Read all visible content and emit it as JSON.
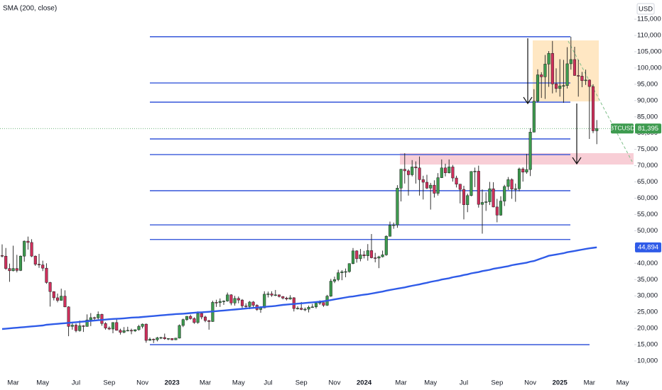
{
  "chart_data": {
    "type": "candlestick",
    "currency": "USD",
    "categories": [
      null,
      null,
      null,
      "Mar",
      null,
      null,
      null,
      null,
      null,
      null,
      null,
      "May",
      null,
      null,
      null,
      null,
      null,
      null,
      null,
      null,
      "Jul",
      null,
      null,
      null,
      null,
      null,
      null,
      null,
      null,
      "Sep",
      null,
      null,
      null,
      null,
      null,
      null,
      null,
      null,
      "Nov",
      null,
      null,
      null,
      null,
      null,
      null,
      null,
      "2023",
      null,
      null,
      null,
      null,
      null,
      null,
      null,
      null,
      "Mar",
      null,
      null,
      null,
      null,
      null,
      null,
      null,
      null,
      "May",
      null,
      null,
      null,
      null,
      null,
      null,
      null,
      "Jul",
      null,
      null,
      null,
      null,
      null,
      null,
      null,
      null,
      "Sep",
      null,
      null,
      null,
      null,
      null,
      null,
      null,
      null,
      "Nov",
      null,
      null,
      null,
      null,
      null,
      null,
      null,
      "2024",
      null,
      null,
      null,
      null,
      null,
      null,
      null,
      null,
      null,
      "Mar",
      null,
      null,
      null,
      null,
      null,
      null,
      null,
      "May",
      null,
      null,
      null,
      null,
      null,
      null,
      null,
      null,
      "Jul",
      null,
      null,
      null,
      null,
      null,
      null,
      null,
      null,
      "Sep",
      null,
      null,
      null,
      null,
      null,
      null,
      null,
      null,
      "Nov",
      null,
      null,
      null,
      null,
      null,
      null,
      null,
      "2025",
      null,
      null,
      null,
      null,
      null,
      null,
      null,
      "Mar",
      null,
      null,
      null,
      null,
      null,
      null,
      null,
      null,
      "May"
    ],
    "series": [
      {
        "name": "BTCUSD",
        "up_color": "#3d9b4f",
        "down_color": "#cf2f5c",
        "wick_color": "#1e1e1e",
        "price_tag": "81,395",
        "open": [
          42400,
          42200,
          38400,
          37700,
          38400,
          37800,
          42200,
          46800,
          46400,
          42200,
          39700,
          39500,
          38500,
          34100,
          31300,
          29400,
          28600,
          29900,
          26600,
          20600,
          21000,
          19300,
          20800,
          20600,
          22600,
          23300,
          23200,
          24300,
          21500,
          20100,
          19800,
          21800,
          19400,
          18800,
          19300,
          19400,
          19200,
          19600,
          20600,
          21300,
          16300,
          16700,
          16500,
          17100,
          17200,
          16800,
          16900,
          16500,
          17000,
          20900,
          22700,
          23700,
          23000,
          21800,
          24600,
          23500,
          22400,
          22100,
          28000,
          27900,
          28300,
          28400,
          30300,
          27800,
          29200,
          28700,
          26900,
          26700,
          28100,
          27100,
          25800,
          26300,
          30500,
          30600,
          30200,
          30300,
          29800,
          29300,
          29000,
          29400,
          26100,
          26200,
          25800,
          25900,
          26500,
          26600,
          27900,
          27950,
          27100,
          29900,
          34500,
          35000,
          37100,
          37400,
          37450,
          39900,
          43800,
          41400,
          42600,
          42300,
          43900,
          41700,
          41600,
          42000,
          42600,
          48300,
          51700,
          51800,
          63100,
          68900,
          68400,
          67200,
          69600,
          69300,
          65700,
          64900,
          63100,
          64000,
          61500,
          66300,
          69300,
          67800,
          69600,
          66200,
          64300,
          62700,
          58000,
          60800,
          68200,
          68300,
          58100,
          58700,
          58900,
          62900,
          57300,
          54800,
          59100,
          63600,
          65700,
          62800,
          62900,
          69000,
          68000,
          68800,
          80300,
          89800,
          97900,
          97300,
          101200,
          104500,
          95100,
          93700,
          94500,
          94600,
          101300,
          102600,
          97700,
          97500,
          96100,
          96300,
          94300,
          80700,
          null,
          null,
          null,
          null,
          null,
          null,
          null
        ],
        "high": [
          45800,
          44700,
          39900,
          45400,
          42600,
          42400,
          47000,
          48200,
          47400,
          42400,
          42900,
          40800,
          40000,
          34300,
          31400,
          30700,
          32200,
          31700,
          26800,
          21800,
          21500,
          22400,
          21000,
          24300,
          24700,
          23600,
          25200,
          24500,
          21900,
          20600,
          21900,
          22800,
          19900,
          20400,
          20500,
          19900,
          19700,
          21100,
          21500,
          21500,
          17200,
          16900,
          17400,
          17400,
          18400,
          17000,
          16950,
          17100,
          21200,
          23000,
          23800,
          24200,
          23400,
          25200,
          25000,
          23900,
          22600,
          28500,
          28800,
          29200,
          28600,
          31000,
          30500,
          30000,
          29800,
          29000,
          27700,
          28400,
          28400,
          27400,
          26800,
          31400,
          31300,
          31400,
          31800,
          30400,
          29900,
          29700,
          30200,
          29600,
          26800,
          28100,
          26400,
          27000,
          27500,
          28000,
          28600,
          28000,
          30300,
          35200,
          35900,
          38000,
          37900,
          38400,
          40000,
          44700,
          44000,
          44400,
          43800,
          45900,
          49000,
          43200,
          42300,
          43900,
          48600,
          52800,
          52500,
          64000,
          69000,
          73800,
          68900,
          71700,
          71300,
          72800,
          66900,
          67200,
          64700,
          65500,
          67700,
          71900,
          70600,
          71900,
          70200,
          66900,
          64400,
          63800,
          61400,
          68300,
          69400,
          70000,
          62700,
          61800,
          65000,
          64900,
          59800,
          60600,
          64100,
          66500,
          66100,
          64500,
          69400,
          69500,
          73600,
          81500,
          93500,
          99600,
          98700,
          104000,
          105200,
          108300,
          99900,
          102700,
          102500,
          106400,
          109600,
          106500,
          102500,
          98800,
          99500,
          96500,
          95000,
          84000,
          null,
          null,
          null,
          null,
          null,
          null,
          null
        ],
        "low": [
          41800,
          38000,
          34300,
          37500,
          37200,
          37600,
          40500,
          44200,
          41900,
          39200,
          38600,
          37600,
          33700,
          26700,
          28600,
          28000,
          28500,
          26500,
          17600,
          19600,
          18800,
          19000,
          18900,
          20500,
          20700,
          22400,
          22700,
          20800,
          19600,
          19500,
          18500,
          19300,
          18100,
          18500,
          19100,
          18200,
          18900,
          19300,
          20000,
          15600,
          16200,
          15500,
          16000,
          16700,
          16500,
          16400,
          16300,
          16400,
          16900,
          20400,
          22300,
          22700,
          21400,
          21400,
          22800,
          21900,
          19600,
          22000,
          26600,
          26600,
          27200,
          28200,
          27100,
          27000,
          27700,
          25800,
          26300,
          25900,
          26500,
          25400,
          24800,
          26200,
          29500,
          29700,
          29900,
          29500,
          28900,
          28600,
          28800,
          25200,
          25800,
          25600,
          25300,
          24900,
          26300,
          26100,
          27200,
          26600,
          26900,
          29700,
          33900,
          34500,
          34800,
          35700,
          37100,
          39700,
          40200,
          40600,
          41500,
          40800,
          41500,
          40300,
          38500,
          41800,
          42300,
          48200,
          50600,
          50900,
          59000,
          64500,
          60800,
          66700,
          64500,
          60800,
          59600,
          62800,
          56500,
          60200,
          60800,
          66200,
          66700,
          67600,
          65100,
          63300,
          58400,
          53500,
          55700,
          60600,
          63400,
          57100,
          49100,
          56100,
          57900,
          57200,
          52600,
          54600,
          57600,
          62500,
          59800,
          58900,
          62100,
          65100,
          67500,
          66800,
          80200,
          89400,
          90800,
          90500,
          94200,
          92200,
          92500,
          91200,
          89300,
          93700,
          99500,
          97600,
          91200,
          94100,
          94800,
          78200,
          80000,
          76600,
          null,
          null,
          null,
          null,
          null,
          null,
          null
        ],
        "close": [
          42200,
          38400,
          37700,
          38400,
          37800,
          42200,
          46800,
          46400,
          42200,
          39700,
          39500,
          38500,
          34100,
          31300,
          29400,
          28600,
          29900,
          26600,
          20600,
          21000,
          19300,
          20800,
          20600,
          22600,
          23300,
          23200,
          24300,
          21500,
          20100,
          19800,
          21800,
          19400,
          18800,
          19300,
          19400,
          19200,
          19600,
          20600,
          21300,
          16300,
          16700,
          16500,
          17100,
          17200,
          16800,
          16900,
          16500,
          17000,
          20900,
          22700,
          23700,
          23000,
          21800,
          24600,
          23500,
          22400,
          22100,
          28000,
          27900,
          28300,
          28400,
          30300,
          27800,
          29200,
          28700,
          26900,
          26700,
          28100,
          27100,
          25800,
          26300,
          30500,
          30600,
          30200,
          30300,
          29800,
          29300,
          29000,
          29400,
          26100,
          26200,
          25800,
          25900,
          26500,
          26600,
          27900,
          27950,
          27100,
          29900,
          34500,
          35000,
          37100,
          37400,
          37450,
          39900,
          43800,
          41400,
          42600,
          42300,
          43900,
          41700,
          41600,
          42000,
          42600,
          48300,
          51700,
          51800,
          63100,
          68900,
          68400,
          67200,
          69600,
          69300,
          65700,
          64900,
          63100,
          64000,
          61500,
          66300,
          69300,
          67800,
          69600,
          66200,
          64300,
          62700,
          58000,
          60800,
          68200,
          68300,
          58100,
          58700,
          58900,
          62900,
          57300,
          54800,
          59100,
          63600,
          65700,
          62800,
          62900,
          69000,
          68000,
          68800,
          80300,
          89800,
          97900,
          97300,
          101200,
          104500,
          95100,
          93700,
          94500,
          94600,
          101300,
          102600,
          97700,
          97500,
          96100,
          96300,
          94300,
          80700,
          81395,
          null,
          null,
          null,
          null,
          null,
          null,
          null
        ]
      },
      {
        "name": "SMA (200, close)",
        "type": "line",
        "color": "#2f5be8",
        "price_tag": "44,894",
        "values": [
          19800,
          19900,
          20000,
          20100,
          20200,
          20300,
          20400,
          20500,
          20600,
          20700,
          20800,
          20900,
          21100,
          21200,
          21300,
          21400,
          21500,
          21600,
          21700,
          21800,
          21900,
          22000,
          22100,
          22200,
          22300,
          22400,
          22500,
          22600,
          22700,
          22800,
          22900,
          22950,
          23000,
          23100,
          23200,
          23300,
          23350,
          23400,
          23500,
          23600,
          23700,
          23800,
          23900,
          24000,
          24100,
          24200,
          24300,
          24400,
          24450,
          24500,
          24600,
          24700,
          24800,
          24900,
          24950,
          25000,
          25100,
          25200,
          25300,
          25400,
          25500,
          25600,
          25700,
          25800,
          25900,
          26000,
          26100,
          26200,
          26300,
          26400,
          26500,
          26600,
          26700,
          26800,
          26900,
          27050,
          27200,
          27300,
          27400,
          27500,
          27600,
          27700,
          27800,
          27900,
          28000,
          28100,
          28200,
          28350,
          28500,
          28700,
          28900,
          29100,
          29300,
          29500,
          29700,
          29800,
          30000,
          30200,
          30350,
          30500,
          30700,
          30900,
          31100,
          31300,
          31600,
          31800,
          32000,
          32200,
          32400,
          32600,
          32850,
          33100,
          33300,
          33500,
          33800,
          34000,
          34300,
          34500,
          34700,
          35000,
          35200,
          35400,
          35700,
          35900,
          36100,
          36400,
          36600,
          36900,
          37100,
          37300,
          37600,
          37800,
          38000,
          38300,
          38500,
          38700,
          38900,
          39100,
          39400,
          39600,
          39800,
          40000,
          40200,
          40500,
          40700,
          41100,
          41500,
          41900,
          42300,
          42500,
          42700,
          42900,
          43100,
          43400,
          43600,
          43800,
          44000,
          44200,
          44400,
          44600,
          44750,
          44894,
          null,
          null,
          null,
          null,
          null,
          null,
          null
        ]
      }
    ],
    "levels": [
      109600,
      95400,
      89500,
      78200,
      73400,
      62300,
      51800,
      47300,
      15000
    ],
    "level_color": "#2347d6",
    "ylim": [
      5860,
      120890
    ],
    "yticks": [
      {
        "value": 10000,
        "label": "10,000"
      },
      {
        "value": 15000,
        "label": "15,000"
      },
      {
        "value": 20000,
        "label": "20,000"
      },
      {
        "value": 25000,
        "label": "25,000"
      },
      {
        "value": 30000,
        "label": "30,000"
      },
      {
        "value": 35000,
        "label": "35,000"
      },
      {
        "value": 40000,
        "label": "40,000"
      },
      {
        "value": 45000,
        "label": "45,000"
      },
      {
        "value": 50000,
        "label": "50,000"
      },
      {
        "value": 55000,
        "label": "55,000"
      },
      {
        "value": 60000,
        "label": "60,000"
      },
      {
        "value": 65000,
        "label": "65,000"
      },
      {
        "value": 70000,
        "label": "70,000"
      },
      {
        "value": 75000,
        "label": "75,000"
      },
      {
        "value": 80000,
        "label": "80,000"
      },
      {
        "value": 85000,
        "label": "85,000"
      },
      {
        "value": 90000,
        "label": "90,000"
      },
      {
        "value": 95000,
        "label": "95,000"
      },
      {
        "value": 100000,
        "label": "100,000"
      },
      {
        "value": 105000,
        "label": "105,000"
      },
      {
        "value": 110000,
        "label": "110,000"
      },
      {
        "value": 115000,
        "label": "115,000"
      }
    ]
  }
}
